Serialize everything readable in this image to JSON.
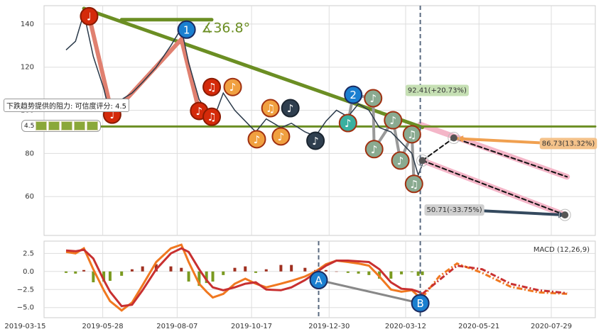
{
  "chart_data": [
    {
      "type": "line",
      "xlim": [
        "2019-04-02",
        "2020-09-09"
      ],
      "ylim": [
        42,
        148.5
      ],
      "yticks": [
        60,
        80,
        100,
        120,
        140
      ],
      "grid": true,
      "x": [
        "2019-04-23",
        "2019-05-02",
        "2019-05-10",
        "2019-05-19",
        "2019-05-29",
        "2019-06-04",
        "2019-06-15",
        "2019-06-25",
        "2019-07-05",
        "2019-07-18",
        "2019-08-01",
        "2019-08-11",
        "2019-08-18",
        "2019-08-28",
        "2019-09-04",
        "2019-09-10",
        "2019-09-20",
        "2019-10-01",
        "2019-10-11",
        "2019-10-21",
        "2019-10-31",
        "2019-11-14",
        "2019-11-24",
        "2019-12-07",
        "2019-12-17",
        "2019-12-27",
        "2020-01-06",
        "2020-01-17",
        "2020-01-27",
        "2020-02-06",
        "2020-02-16",
        "2020-02-27",
        "2020-03-08",
        "2020-03-18",
        "2020-03-24",
        "2020-03-28"
      ],
      "series": [
        {
          "color": "#2b3a4a",
          "values": [
            128,
            132,
            145,
            125,
            110,
            98,
            105,
            108,
            113,
            120,
            130,
            138,
            122,
            105,
            100,
            95,
            108,
            100,
            95,
            90,
            96,
            92,
            94,
            90,
            88,
            95,
            100,
            97,
            103,
            100,
            92,
            90,
            85,
            80,
            70,
            75
          ]
        }
      ],
      "lines": [
        {
          "x": [
            "2020-03-26",
            "2020-08-13"
          ],
          "y": [
            93.4,
            69.2
          ],
          "color": "#f4b6c8",
          "width": 8
        },
        {
          "x": [
            "2020-03-28",
            "2020-08-11"
          ],
          "y": [
            76.7,
            51.5
          ],
          "color": "#f4b6c8",
          "width": 8
        },
        {
          "x": [
            "2019-05-10",
            "2020-03-28"
          ],
          "y": [
            147.2,
            92.1
          ],
          "color": "#6b8e23",
          "width": 5
        },
        {
          "x": [
            "2019-04-02",
            "2020-09-09"
          ],
          "y": [
            92.5,
            92.5
          ],
          "color": "#6b8e23",
          "width": 3
        },
        {
          "x": [
            "2019-06-15",
            "2019-09-09"
          ],
          "y": [
            142,
            142
          ],
          "color": "#6b8e23",
          "width": 5
        },
        {
          "x": [
            "2019-05-15",
            "2019-06-06",
            "2019-08-11",
            "2019-08-28"
          ],
          "y": [
            143.6,
            98,
            133,
            99.7
          ],
          "color": "#e08070",
          "width": 6
        },
        {
          "x": [
            "2020-01-17",
            "2020-01-22",
            "2020-02-10",
            "2020-02-11",
            "2020-02-29",
            "2020-03-07",
            "2020-03-18",
            "2020-03-20"
          ],
          "y": [
            94.1,
            107.2,
            105.6,
            82,
            95.4,
            76.7,
            88.9,
            65.9
          ],
          "color": "#999999",
          "width": 4
        },
        {
          "x": [
            "2020-03-28",
            "2020-04-27",
            "2020-08-13"
          ],
          "y": [
            76.7,
            87.2,
            69.2
          ],
          "color": "#111111",
          "width": 2,
          "dash": true
        },
        {
          "x": [
            "2020-03-28",
            "2020-08-11"
          ],
          "y": [
            76.7,
            51.5
          ],
          "color": "#111111",
          "width": 2,
          "dash": true
        },
        {
          "x": [
            "2020-07-20",
            "2020-04-30"
          ],
          "y": [
            84.9,
            86.9
          ],
          "color": "#f0a050",
          "width": 4,
          "arrow": true
        },
        {
          "x": [
            "2020-05-24",
            "2020-08-11"
          ],
          "y": [
            53.4,
            51.5
          ],
          "color": "#34495e",
          "width": 4,
          "arrow": true
        }
      ],
      "vlines": [
        "2020-03-26"
      ],
      "targets": [
        {
          "x": "2020-03-28",
          "y": 76.7
        },
        {
          "x": "2020-04-27",
          "y": 87.2
        },
        {
          "x": "2020-08-11",
          "y": 51.5
        }
      ],
      "markers": [
        {
          "x": "2019-05-15",
          "y": 143.6,
          "symbol": "♩",
          "color": "#d42a0a",
          "edge": "#8a1a00"
        },
        {
          "x": "2019-06-06",
          "y": 98.0,
          "symbol": "♩",
          "color": "#d42a0a",
          "edge": "#8a1a00"
        },
        {
          "x": "2019-08-28",
          "y": 99.7,
          "symbol": "♪",
          "color": "#d42a0a",
          "edge": "#8a1a00"
        },
        {
          "x": "2019-09-09",
          "y": 97.0,
          "symbol": "♫",
          "color": "#d42a0a",
          "edge": "#8a1a00"
        },
        {
          "x": "2019-09-09",
          "y": 110.8,
          "symbol": "♫",
          "color": "#d42a0a",
          "edge": "#8a1a00"
        },
        {
          "x": "2019-09-29",
          "y": 110.8,
          "symbol": "♪",
          "color": "#f0a040",
          "edge": "#a03010"
        },
        {
          "x": "2019-10-22",
          "y": 86.6,
          "symbol": "♪",
          "color": "#f0a040",
          "edge": "#a03010"
        },
        {
          "x": "2019-11-04",
          "y": 101.0,
          "symbol": "♫",
          "color": "#f0a040",
          "edge": "#a03010"
        },
        {
          "x": "2019-11-14",
          "y": 87.9,
          "symbol": "♪",
          "color": "#f0a040",
          "edge": "#a03010"
        },
        {
          "x": "2019-11-23",
          "y": 101.0,
          "symbol": "♪",
          "color": "#2f3f4f",
          "edge": "#1a2530"
        },
        {
          "x": "2019-12-17",
          "y": 85.9,
          "symbol": "♪",
          "color": "#2f3f4f",
          "edge": "#1a2530"
        },
        {
          "x": "2020-01-17",
          "y": 94.1,
          "symbol": "♪",
          "color": "#3ab0a0",
          "edge": "#a03010"
        },
        {
          "x": "2020-02-10",
          "y": 105.6,
          "symbol": "♪",
          "color": "#8aaa90",
          "edge": "#a03010"
        },
        {
          "x": "2020-02-29",
          "y": 95.4,
          "symbol": "♪",
          "color": "#8aaa90",
          "edge": "#a03010"
        },
        {
          "x": "2020-03-18",
          "y": 88.9,
          "symbol": "♫",
          "color": "#8aaa90",
          "edge": "#a03010"
        },
        {
          "x": "2020-02-11",
          "y": 82.0,
          "symbol": "♪",
          "color": "#8aaa90",
          "edge": "#a03010"
        },
        {
          "x": "2020-03-07",
          "y": 76.7,
          "symbol": "♪",
          "color": "#8aaa90",
          "edge": "#a03010"
        },
        {
          "x": "2020-03-20",
          "y": 65.9,
          "symbol": "♫",
          "color": "#8aaa90",
          "edge": "#a03010"
        },
        {
          "x": "2019-08-16",
          "y": 137.4,
          "symbol": "1",
          "color": "#1a7fd0",
          "edge": "#1a2a60"
        },
        {
          "x": "2020-01-22",
          "y": 107.2,
          "symbol": "2",
          "color": "#1a7fd0",
          "edge": "#1a2a60"
        }
      ],
      "labels": [
        {
          "text": "∡36.8°",
          "x": "2019-08-30",
          "y": 138,
          "color": "#6b8e23",
          "size": 19
        },
        {
          "text": "92.41(+20.73%)",
          "x": "2020-03-14",
          "y": 109.2,
          "color": "#333333",
          "bg": "#c6e0b4",
          "size": 10
        },
        {
          "text": "86.73(13.32%)",
          "x": "2020-07-20",
          "y": 84.6,
          "color": "#333333",
          "bg": "#f4c28a",
          "size": 10
        },
        {
          "text": "50.71(-33.75%)",
          "x": "2020-04-01",
          "y": 53.8,
          "color": "#333333",
          "bg": "#d0d0d0",
          "size": 10
        }
      ],
      "resistance_label": "下跌趋势提供的阻力: 可信度评分: 4.5",
      "rating": "4.5"
    },
    {
      "type": "line",
      "xlim": [
        "2019-04-02",
        "2020-09-09"
      ],
      "ylim": [
        -6.4,
        4.2
      ],
      "yticks": [
        2.5,
        {
          "value": 0,
          "label": "0.0"
        },
        {
          "value": -2.5,
          "label": "−2.5"
        },
        {
          "value": -5,
          "label": "−5.0"
        }
      ],
      "grid": true,
      "xticks": [
        "2019-03-15",
        "2019-05-28",
        "2019-08-07",
        "2019-10-17",
        "2019-12-30",
        "2020-03-12",
        "2020-05-21",
        "2020-07-29"
      ],
      "legend_text": "MACD (12,26,9)",
      "x": [
        "2019-04-23",
        "2019-05-02",
        "2019-05-10",
        "2019-05-19",
        "2019-05-29",
        "2019-06-04",
        "2019-06-15",
        "2019-06-25",
        "2019-07-05",
        "2019-07-18",
        "2019-08-01",
        "2019-08-11",
        "2019-08-18",
        "2019-08-28",
        "2019-09-04",
        "2019-09-10",
        "2019-09-20",
        "2019-10-01",
        "2019-10-11",
        "2019-10-21",
        "2019-10-31",
        "2019-11-14",
        "2019-11-24",
        "2019-12-07",
        "2019-12-17",
        "2019-12-27",
        "2020-01-06",
        "2020-01-17",
        "2020-01-27",
        "2020-02-06",
        "2020-02-16",
        "2020-02-27",
        "2020-03-08",
        "2020-03-18",
        "2020-03-24",
        "2020-03-28"
      ],
      "histogram": {
        "pos_color": "#a03020",
        "neg_color": "#7a9a20",
        "values": [
          -0.2,
          -0.3,
          0.2,
          -1.5,
          -1.4,
          -1.3,
          -0.6,
          0.3,
          0.7,
          1.0,
          0.7,
          0.5,
          -1.4,
          -2.0,
          -1.6,
          -1.4,
          -0.5,
          0.5,
          0.7,
          -0.2,
          0.3,
          0.9,
          0.9,
          0.5,
          0.2,
          0.2,
          0,
          -0.2,
          -0.3,
          -0.5,
          -1.0,
          -1.0,
          -0.4,
          -0.1,
          -0.6,
          -0.5
        ]
      },
      "series": [
        {
          "color": "#f07820",
          "values": [
            2.7,
            2.5,
            3.2,
            0.3,
            -2.6,
            -4.1,
            -5.4,
            -4.3,
            -1.9,
            1.3,
            3.2,
            3.7,
            1.3,
            -1.7,
            -2.8,
            -3.6,
            -3.1,
            -1.7,
            -1.0,
            -1.7,
            -2.2,
            -1.7,
            -1.3,
            -0.7,
            0,
            1.0,
            1.5,
            1.3,
            1.1,
            0.8,
            -0.7,
            -2.5,
            -2.8,
            -2.6,
            -3.4,
            -3.6
          ]
        },
        {
          "color": "#c83030",
          "values": [
            2.9,
            2.8,
            3.0,
            1.8,
            -1.2,
            -2.8,
            -4.8,
            -4.6,
            -2.6,
            0.3,
            2.5,
            3.2,
            2.7,
            0.3,
            -1.2,
            -2.2,
            -2.6,
            -2.2,
            -1.7,
            -1.5,
            -2.5,
            -2.6,
            -2.2,
            -1.2,
            -0.2,
            0.8,
            1.5,
            1.5,
            1.4,
            1.3,
            0.3,
            -1.5,
            -2.4,
            -2.5,
            -2.8,
            -3.1
          ]
        },
        {
          "color": "#f07820",
          "dash": true,
          "x": [
            "2020-03-28",
            "2020-04-13",
            "2020-04-30",
            "2020-05-24",
            "2020-06-20",
            "2020-07-17",
            "2020-08-13"
          ],
          "values": [
            -3.6,
            -0.7,
            1.1,
            -0.2,
            -2.1,
            -2.9,
            -3.1
          ]
        },
        {
          "color": "#c83030",
          "dash": true,
          "x": [
            "2020-03-28",
            "2020-04-13",
            "2020-04-30",
            "2020-05-24",
            "2020-06-20",
            "2020-07-17",
            "2020-08-13"
          ],
          "values": [
            -3.1,
            -1.2,
            0.8,
            0.3,
            -1.7,
            -2.6,
            -3.0
          ]
        }
      ],
      "vlines": [
        "2019-12-20",
        "2020-03-26"
      ],
      "lines": [
        {
          "x": [
            "2019-12-20",
            "2020-03-26"
          ],
          "y": [
            -1.2,
            -4.4
          ],
          "color": "#888888",
          "width": 3
        }
      ],
      "markers": [
        {
          "x": "2019-12-20",
          "y": -1.2,
          "symbol": "A",
          "color": "#1a7fd0",
          "edge": "#1a2a60"
        },
        {
          "x": "2020-03-26",
          "y": -4.4,
          "symbol": "B",
          "color": "#1a7fd0",
          "edge": "#1a2a60"
        }
      ]
    }
  ]
}
